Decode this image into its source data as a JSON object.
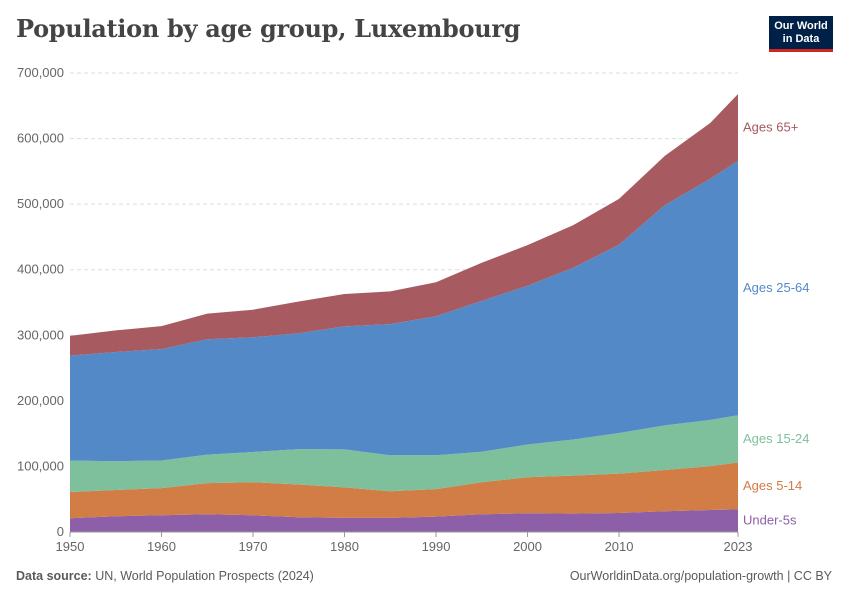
{
  "header": {
    "title": "Population by age group, Luxembourg",
    "logo_line1": "Our World",
    "logo_line2": "in Data"
  },
  "footer": {
    "source_label": "Data source:",
    "source_text": "UN, World Population Prospects (2024)",
    "url_text": "OurWorldinData.org/population-growth | CC BY"
  },
  "chart_data": {
    "type": "area",
    "stacked": true,
    "title": "Population by age group, Luxembourg",
    "xlim": [
      1950,
      2023
    ],
    "ylim": [
      0,
      700000
    ],
    "x_ticks": [
      1950,
      1960,
      1970,
      1980,
      1990,
      2000,
      2010,
      2023
    ],
    "x_tick_labels": [
      "1950",
      "1960",
      "1970",
      "1980",
      "1990",
      "2000",
      "2010",
      "2023"
    ],
    "y_ticks": [
      0,
      100000,
      200000,
      300000,
      400000,
      500000,
      600000,
      700000
    ],
    "y_tick_labels": [
      "0",
      "100,000",
      "200,000",
      "300,000",
      "400,000",
      "500,000",
      "600,000",
      "700,000"
    ],
    "grid": "horizontal dashed",
    "legend": "right (inline labels)",
    "x": [
      1950,
      1955,
      1960,
      1965,
      1970,
      1975,
      1980,
      1985,
      1990,
      1995,
      2000,
      2005,
      2010,
      2015,
      2020,
      2023
    ],
    "series": [
      {
        "name": "Under-5s",
        "color": "#8c5fa8",
        "values": [
          21000,
          24000,
          25500,
          27000,
          25500,
          22500,
          21500,
          21500,
          23500,
          27000,
          28500,
          28000,
          29000,
          31500,
          33500,
          34500
        ]
      },
      {
        "name": "Ages 5-14",
        "color": "#d27c46",
        "values": [
          40000,
          40000,
          41500,
          47500,
          50500,
          50000,
          46500,
          40500,
          42000,
          49000,
          55000,
          58000,
          60000,
          63000,
          67000,
          71500
        ]
      },
      {
        "name": "Ages 15-24",
        "color": "#7ec09b",
        "values": [
          48000,
          44000,
          42000,
          43500,
          46000,
          54000,
          58000,
          55000,
          51500,
          46500,
          50000,
          55000,
          62000,
          68000,
          70500,
          72000
        ]
      },
      {
        "name": "Ages 25-64",
        "color": "#5489c8",
        "values": [
          160000,
          166500,
          170000,
          176000,
          175000,
          176500,
          187500,
          200000,
          212000,
          230000,
          242000,
          262000,
          287000,
          336000,
          368000,
          388000
        ]
      },
      {
        "name": "Ages 65+",
        "color": "#a75a60",
        "values": [
          30000,
          33000,
          35000,
          39000,
          42000,
          48500,
          49500,
          50000,
          52000,
          58000,
          62000,
          65000,
          70000,
          75000,
          85000,
          102000
        ]
      }
    ]
  }
}
